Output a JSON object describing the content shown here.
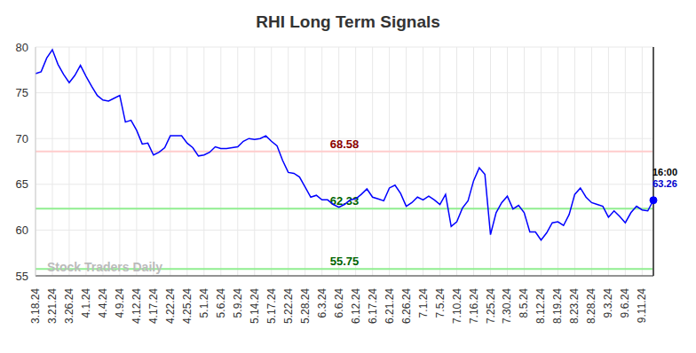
{
  "chart_data": {
    "type": "line",
    "title": "RHI Long Term Signals",
    "watermark": "Stock Traders Daily",
    "categories": [
      "3.18.24",
      null,
      null,
      "3.21.24",
      null,
      null,
      "3.26.24",
      null,
      null,
      "4.1.24",
      null,
      null,
      "4.4.24",
      null,
      null,
      "4.9.24",
      null,
      null,
      "4.12.24",
      null,
      null,
      "4.17.24",
      null,
      null,
      "4.22.24",
      null,
      null,
      "4.25.24",
      null,
      null,
      "5.1.24",
      null,
      null,
      "5.6.24",
      null,
      null,
      "5.9.24",
      null,
      null,
      "5.14.24",
      null,
      null,
      "5.17.24",
      null,
      null,
      "5.22.24",
      null,
      null,
      "5.28.24",
      null,
      null,
      "6.3.24",
      null,
      null,
      "6.6.24",
      null,
      null,
      "6.12.24",
      null,
      null,
      "6.17.24",
      null,
      null,
      "6.21.24",
      null,
      null,
      "6.26.24",
      null,
      null,
      "7.1.24",
      null,
      null,
      "7.5.24",
      null,
      null,
      "7.10.24",
      null,
      null,
      "7.16.24",
      null,
      null,
      "7.25.24",
      null,
      null,
      "7.30.24",
      null,
      null,
      "8.5.24",
      null,
      null,
      "8.12.24",
      null,
      null,
      "8.19.24",
      null,
      null,
      "8.23.24",
      null,
      null,
      "8.28.24",
      null,
      null,
      "9.3.24",
      null,
      null,
      "9.6.24",
      null,
      null,
      "9.11.24",
      null,
      null
    ],
    "values": [
      77.1,
      77.3,
      78.8,
      79.7,
      78.1,
      77.0,
      76.1,
      76.9,
      78.0,
      76.8,
      75.7,
      74.7,
      74.2,
      74.1,
      74.4,
      74.7,
      71.8,
      72.0,
      70.9,
      69.4,
      69.5,
      68.2,
      68.5,
      69.0,
      70.3,
      70.3,
      70.3,
      69.5,
      69.0,
      68.1,
      68.2,
      68.5,
      69.1,
      68.9,
      68.9,
      69.0,
      69.1,
      69.7,
      70.0,
      69.9,
      70.0,
      70.3,
      69.7,
      69.2,
      67.6,
      66.3,
      66.2,
      65.8,
      64.7,
      63.6,
      63.8,
      63.3,
      63.3,
      62.8,
      62.5,
      62.8,
      63.3,
      63.4,
      63.9,
      64.5,
      63.6,
      63.4,
      63.2,
      64.6,
      64.9,
      64.0,
      62.6,
      63.0,
      63.6,
      63.3,
      63.7,
      63.3,
      62.8,
      63.9,
      60.4,
      60.9,
      62.4,
      63.2,
      65.4,
      66.8,
      66.1,
      59.5,
      61.9,
      63.0,
      63.7,
      62.3,
      62.7,
      61.9,
      59.8,
      59.8,
      58.9,
      59.7,
      60.8,
      60.9,
      60.5,
      61.7,
      63.9,
      64.6,
      63.6,
      63.0,
      62.8,
      62.6,
      61.4,
      62.1,
      61.5,
      60.8,
      61.9,
      62.6,
      62.2,
      62.1,
      63.26
    ],
    "color": "#0000ff",
    "ylim": [
      55,
      80
    ],
    "yticks": [
      55,
      60,
      65,
      70,
      75,
      80
    ],
    "grid": true,
    "reference_lines": [
      {
        "value": 68.58,
        "color": "#ffcccc"
      },
      {
        "value": 62.33,
        "color": "#90ee90"
      },
      {
        "value": 55.75,
        "color": "#90ee90"
      }
    ],
    "last_point": {
      "time": "16:00",
      "value": 63.26
    }
  }
}
